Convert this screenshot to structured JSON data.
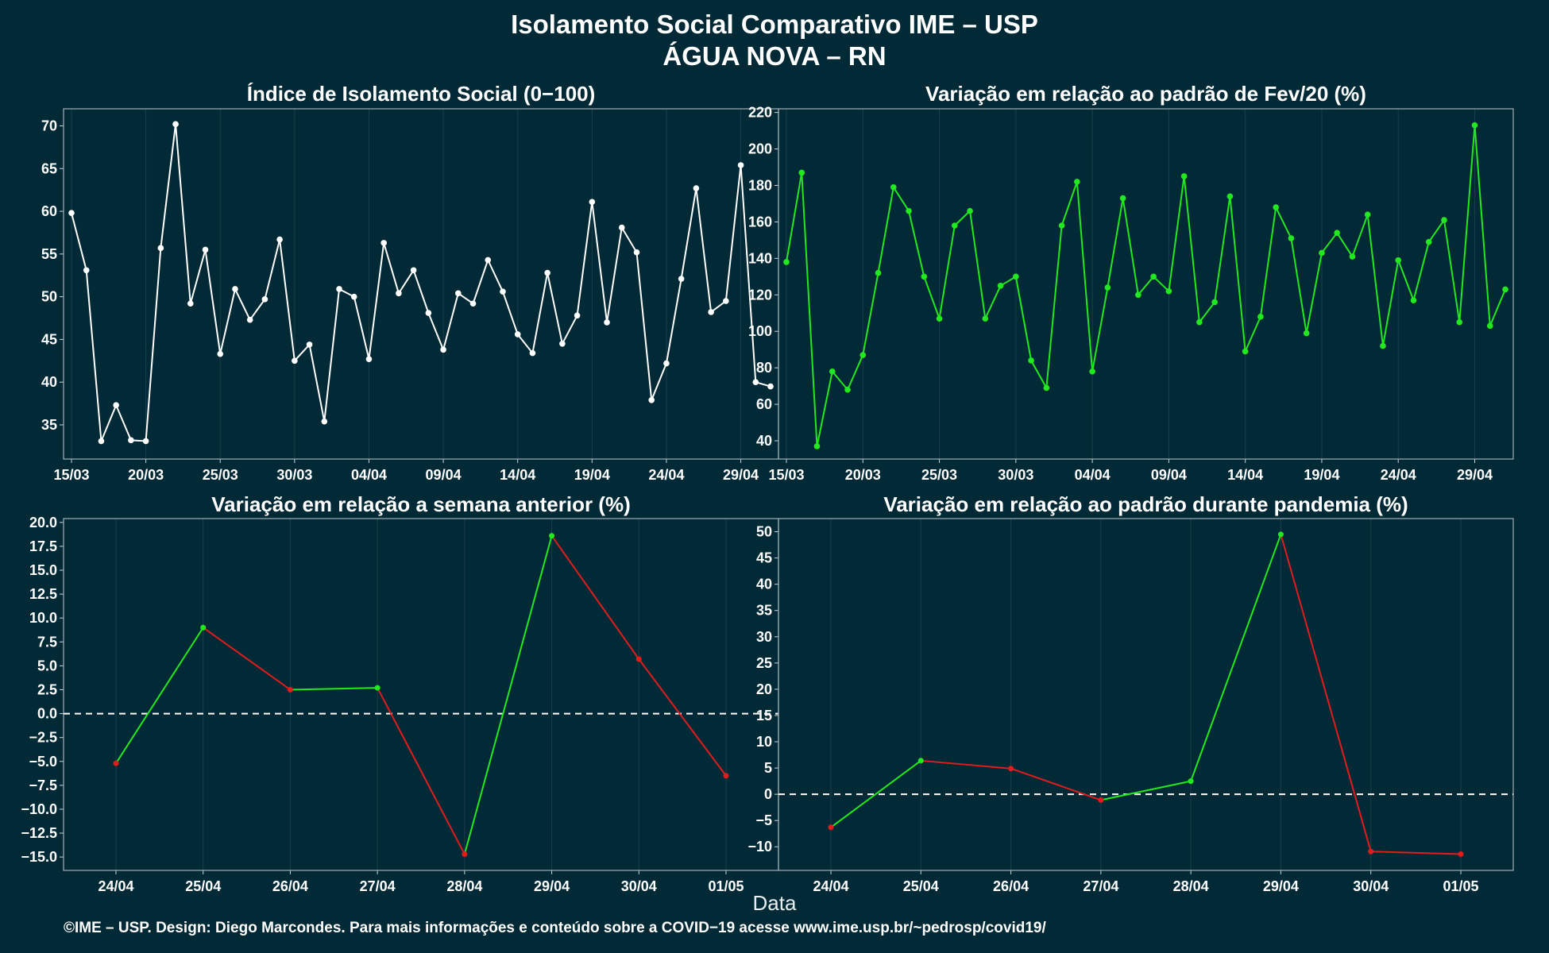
{
  "title_line1": "Isolamento Social Comparativo IME – USP",
  "title_line2": "ÁGUA NOVA – RN",
  "xaxis_label": "Data",
  "footer": "©IME – USP. Design: Diego Marcondes. Para mais informações e conteúdo sobre a COVID−19 acesse www.ime.usp.br/~pedrosp/covid19/",
  "colors": {
    "background": "#022a36",
    "index_line": "#ffffff",
    "positive": "#22e81f",
    "negative": "#e01c1c",
    "zero_line": "#ffffff",
    "grid": "#1d3d48"
  },
  "chart_data": [
    {
      "type": "line",
      "title": "Índice de Isolamento Social (0−100)",
      "x": [
        "15/03",
        "16/03",
        "17/03",
        "18/03",
        "19/03",
        "20/03",
        "21/03",
        "22/03",
        "23/03",
        "24/03",
        "25/03",
        "26/03",
        "27/03",
        "28/03",
        "29/03",
        "30/03",
        "31/03",
        "01/04",
        "02/04",
        "03/04",
        "04/04",
        "05/04",
        "06/04",
        "07/04",
        "08/04",
        "09/04",
        "10/04",
        "11/04",
        "12/04",
        "13/04",
        "14/04",
        "15/04",
        "16/04",
        "17/04",
        "18/04",
        "19/04",
        "20/04",
        "21/04",
        "22/04",
        "23/04",
        "24/04",
        "25/04",
        "26/04",
        "27/04",
        "28/04",
        "29/04",
        "30/04",
        "01/05"
      ],
      "series": [
        {
          "values": [
            59.8,
            53.1,
            33.1,
            37.3,
            33.2,
            33.1,
            55.7,
            70.2,
            49.2,
            55.5,
            43.3,
            50.9,
            47.3,
            49.7,
            56.7,
            42.5,
            44.4,
            35.4,
            50.9,
            50.0,
            42.7,
            56.3,
            50.4,
            53.1,
            48.1,
            43.8,
            50.4,
            49.2,
            54.3,
            50.6,
            45.6,
            43.4,
            52.8,
            44.5,
            47.8,
            61.1,
            47.0,
            58.1,
            55.2,
            37.9,
            42.2,
            52.1,
            62.7,
            48.2,
            49.5,
            65.4,
            40.0,
            39.5
          ]
        }
      ],
      "xticks": [
        "15/03",
        "20/03",
        "25/03",
        "30/03",
        "04/04",
        "09/04",
        "14/04",
        "19/04",
        "24/04",
        "29/04"
      ],
      "yticks": [
        "35",
        "40",
        "45",
        "50",
        "55",
        "60",
        "65",
        "70"
      ],
      "ylim": [
        31,
        72
      ]
    },
    {
      "type": "line",
      "title": "Variação em relação ao padrão de Fev/20 (%)",
      "x": [
        "15/03",
        "16/03",
        "17/03",
        "18/03",
        "19/03",
        "20/03",
        "21/03",
        "22/03",
        "23/03",
        "24/03",
        "25/03",
        "26/03",
        "27/03",
        "28/03",
        "29/03",
        "30/03",
        "31/03",
        "01/04",
        "02/04",
        "03/04",
        "04/04",
        "05/04",
        "06/04",
        "07/04",
        "08/04",
        "09/04",
        "10/04",
        "11/04",
        "12/04",
        "13/04",
        "14/04",
        "15/04",
        "16/04",
        "17/04",
        "18/04",
        "19/04",
        "20/04",
        "21/04",
        "22/04",
        "23/04",
        "24/04",
        "25/04",
        "26/04",
        "27/04",
        "28/04",
        "29/04",
        "30/04",
        "01/05"
      ],
      "series": [
        {
          "values": [
            138,
            187,
            37,
            78,
            68,
            87,
            132,
            179,
            166,
            130,
            107,
            158,
            166,
            107,
            125,
            130,
            84,
            69,
            158,
            182,
            78,
            124,
            173,
            120,
            130,
            122,
            185,
            105,
            116,
            174,
            89,
            108,
            168,
            151,
            99,
            143,
            154,
            141,
            164,
            92,
            139,
            117,
            149,
            161,
            105,
            213,
            103,
            123
          ]
        }
      ],
      "xticks": [
        "15/03",
        "20/03",
        "25/03",
        "30/03",
        "04/04",
        "09/04",
        "14/04",
        "19/04",
        "24/04",
        "29/04"
      ],
      "yticks": [
        "40",
        "60",
        "80",
        "100",
        "120",
        "140",
        "160",
        "180",
        "200",
        "220"
      ],
      "ylim": [
        30,
        222
      ]
    },
    {
      "type": "line",
      "title": "Variação em relação a semana anterior (%)",
      "x": [
        "24/04",
        "25/04",
        "26/04",
        "27/04",
        "28/04",
        "29/04",
        "30/04",
        "01/05"
      ],
      "series": [
        {
          "values": [
            -5.2,
            9.0,
            2.5,
            2.7,
            -14.7,
            18.6,
            5.7,
            -6.5
          ]
        }
      ],
      "xticks": [
        "24/04",
        "25/04",
        "26/04",
        "27/04",
        "28/04",
        "29/04",
        "30/04",
        "01/05"
      ],
      "yticks": [
        "−15.0",
        "−12.5",
        "−10.0",
        "−7.5",
        "−5.0",
        "−2.5",
        "0.0",
        "2.5",
        "5.0",
        "7.5",
        "10.0",
        "12.5",
        "15.0",
        "17.5",
        "20.0"
      ],
      "ylim": [
        -16.4,
        20.4
      ],
      "reference_line": 0
    },
    {
      "type": "line",
      "title": "Variação em relação ao padrão durante pandemia (%)",
      "x": [
        "24/04",
        "25/04",
        "26/04",
        "27/04",
        "28/04",
        "29/04",
        "30/04",
        "01/05"
      ],
      "series": [
        {
          "values": [
            -6.3,
            6.4,
            4.9,
            -1.1,
            2.5,
            49.5,
            -10.9,
            -11.4
          ]
        }
      ],
      "xticks": [
        "24/04",
        "25/04",
        "26/04",
        "27/04",
        "28/04",
        "29/04",
        "30/04",
        "01/05"
      ],
      "yticks": [
        "−10",
        "−5",
        "0",
        "5",
        "10",
        "15",
        "20",
        "25",
        "30",
        "35",
        "40",
        "45",
        "50"
      ],
      "ylim": [
        -14.5,
        52.5
      ],
      "reference_line": 0
    }
  ]
}
